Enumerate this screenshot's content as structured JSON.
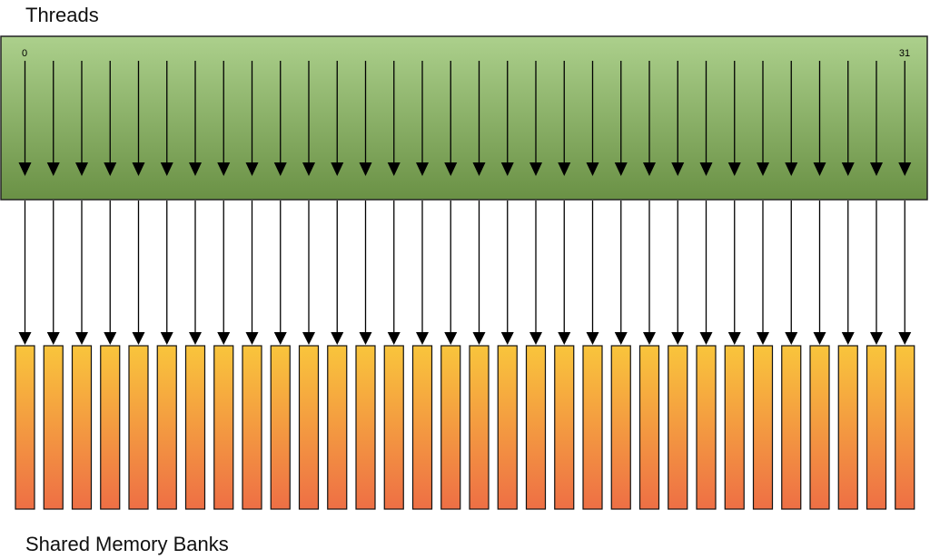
{
  "threads": {
    "title": "Threads",
    "count": 32,
    "first_label": "0",
    "last_label": "31",
    "colors": {
      "top": "#acd08c",
      "bottom": "#6a9145",
      "border": "#222222"
    }
  },
  "banks": {
    "title": "Shared Memory Banks",
    "count": 32,
    "colors": {
      "top": "#f9c53c",
      "bottom": "#ee6f45",
      "border": "#111111"
    }
  },
  "mapping": "one-to-one",
  "arrow_color": "#000000"
}
